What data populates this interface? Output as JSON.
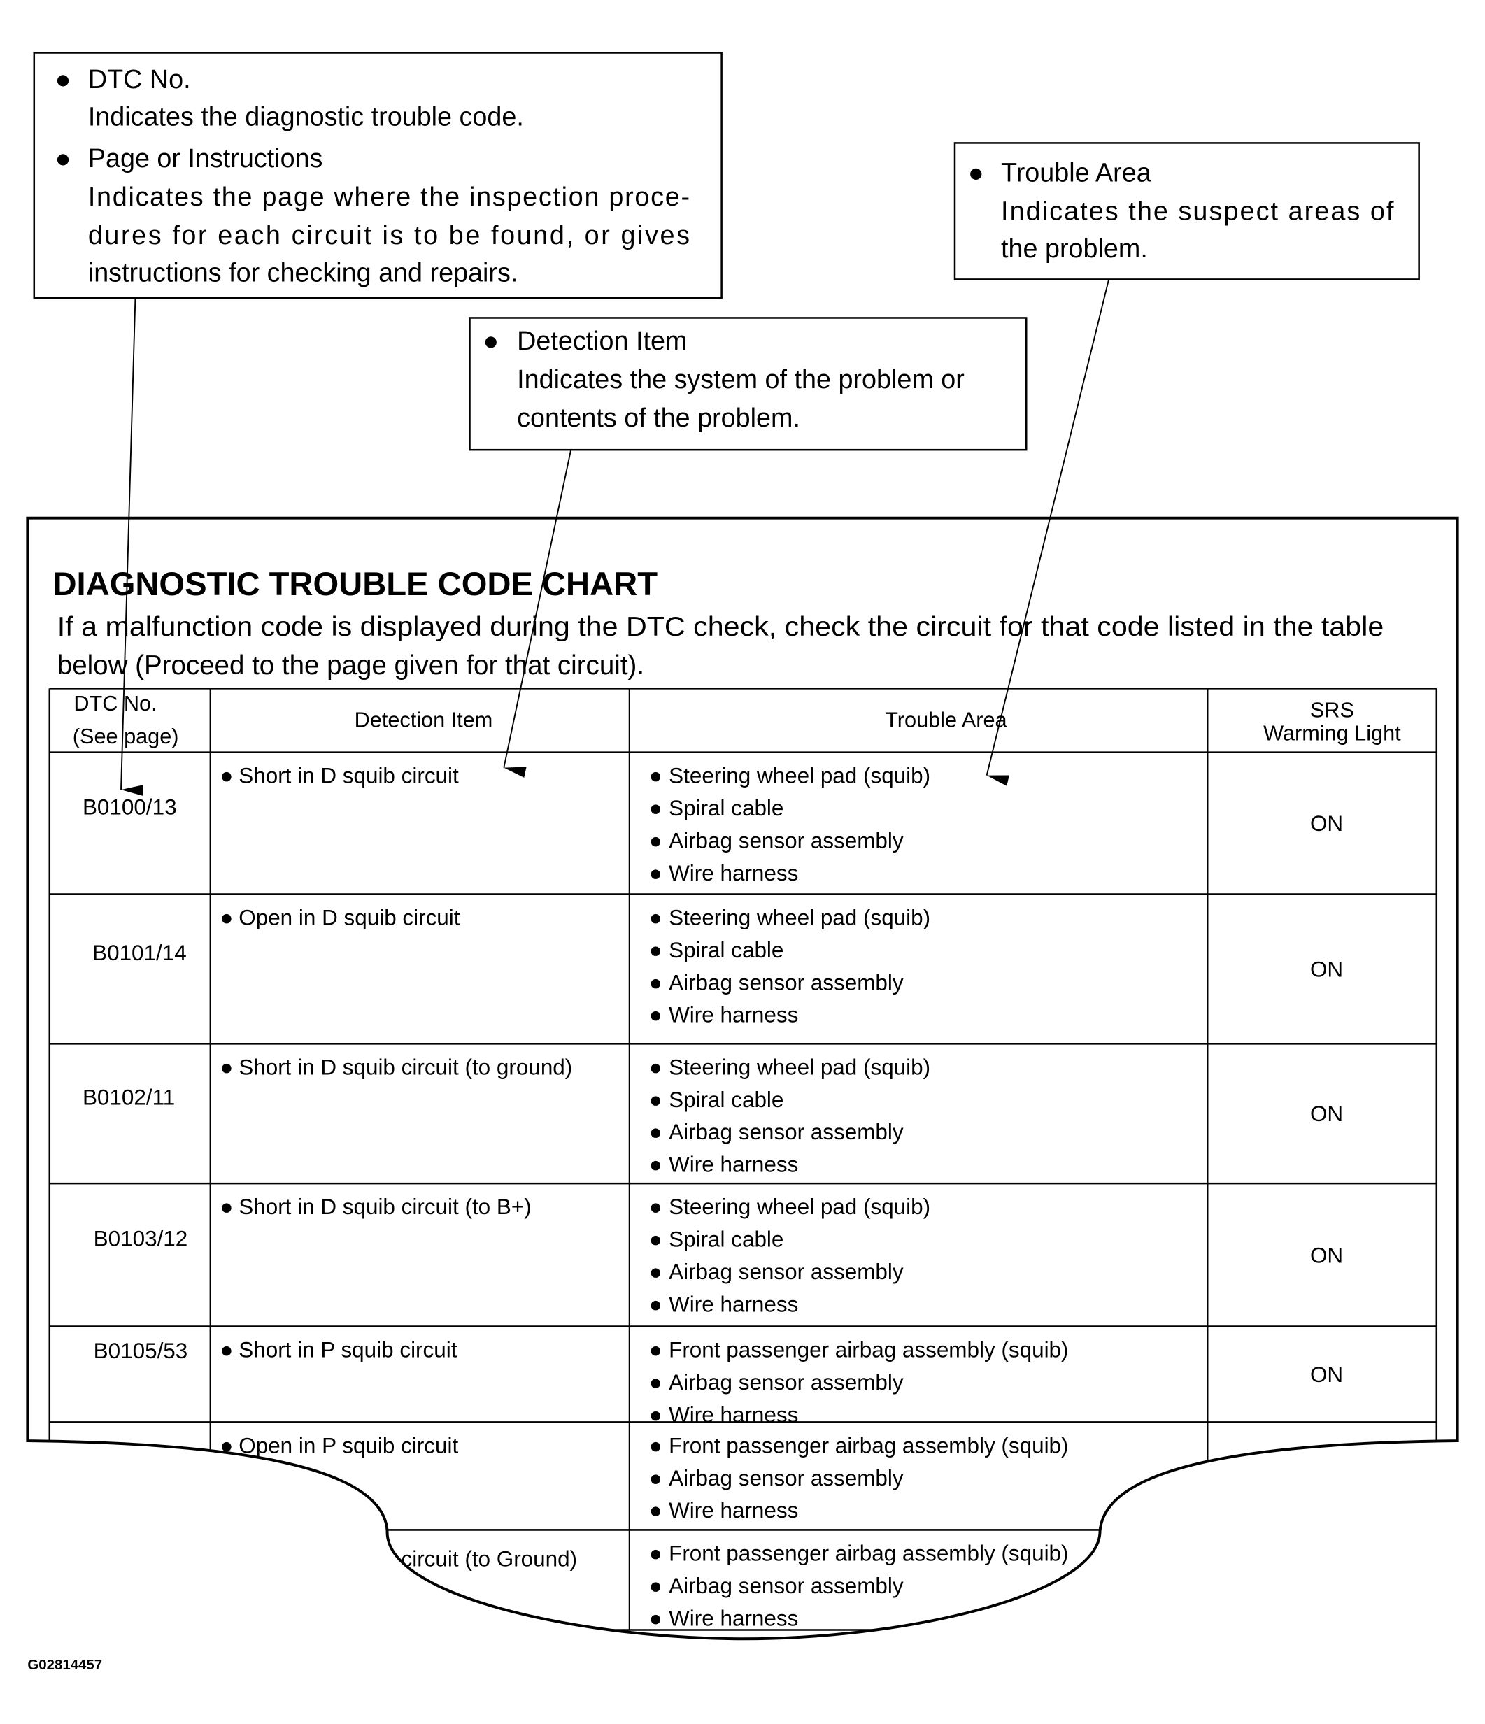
{
  "callouts": {
    "dtc": {
      "heading": "DTC No.",
      "body": [
        "Indicates the diagnostic trouble code."
      ],
      "heading2": "Page or Instructions",
      "body2": [
        "Indicates the page where the inspection proce-",
        "dures for each circuit is to be found, or gives",
        "instructions for checking and repairs."
      ]
    },
    "trouble_area": {
      "heading": "Trouble Area",
      "body": [
        "Indicates the suspect areas of",
        "the problem."
      ]
    },
    "detection_item": {
      "heading": "Detection Item",
      "body": [
        "Indicates the system of the problem or",
        "contents of the problem."
      ]
    }
  },
  "chart": {
    "title": "DIAGNOSTIC TROUBLE CODE CHART",
    "intro": [
      "If a malfunction code is displayed during the DTC check, check the circuit for that code listed in the table",
      "below (Proceed to the page given for that circuit)."
    ],
    "headers": {
      "dtc": [
        "DTC No.",
        "(See page)"
      ],
      "detection": "Detection Item",
      "trouble": "Trouble Area",
      "srs": [
        "SRS",
        "Warming Light"
      ]
    },
    "rows": [
      {
        "dtc": "B0100/13",
        "detection": "Short in D squib circuit",
        "trouble": [
          "Steering wheel pad (squib)",
          "Spiral cable",
          "Airbag sensor assembly",
          "Wire harness"
        ],
        "srs": "ON"
      },
      {
        "dtc": "B0101/14",
        "detection": "Open in D squib circuit",
        "trouble": [
          "Steering wheel pad (squib)",
          "Spiral cable",
          "Airbag sensor assembly",
          "Wire harness"
        ],
        "srs": "ON"
      },
      {
        "dtc": "B0102/11",
        "detection": "Short in D squib circuit (to ground)",
        "trouble": [
          "Steering wheel pad (squib)",
          "Spiral cable",
          "Airbag sensor assembly",
          "Wire harness"
        ],
        "srs": "ON"
      },
      {
        "dtc": "B0103/12",
        "detection": "Short in D squib circuit (to B+)",
        "trouble": [
          "Steering wheel pad (squib)",
          "Spiral cable",
          "Airbag sensor assembly",
          "Wire harness"
        ],
        "srs": "ON"
      },
      {
        "dtc": "B0105/53",
        "detection": "Short in P squib circuit",
        "trouble": [
          "Front passenger airbag assembly (squib)",
          "Airbag sensor assembly",
          "Wire harness"
        ],
        "srs": "ON"
      },
      {
        "dtc": "",
        "detection": "Open in P squib circuit",
        "trouble": [
          "Front passenger airbag assembly (squib)",
          "Airbag sensor assembly",
          "Wire harness"
        ],
        "srs": ""
      },
      {
        "dtc": "",
        "detection": "b circuit (to Ground)",
        "trouble": [
          "Front passenger airbag assembly (squib)",
          "Airbag sensor assembly",
          "Wire harness"
        ],
        "srs": ""
      }
    ]
  },
  "figure_code": "G02814457",
  "bullet": "●"
}
